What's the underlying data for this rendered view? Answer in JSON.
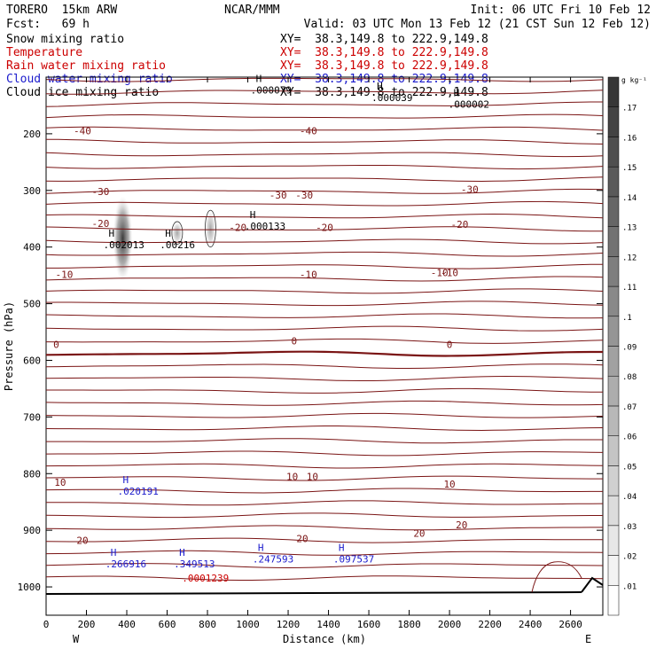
{
  "header": {
    "model": "TORERO  15km ARW",
    "org": "NCAR/MMM",
    "init": "Init: 06 UTC Fri 10 Feb 12",
    "fcst": "Fcst:   69 h",
    "valid": "Valid: 03 UTC Mon 13 Feb 12 (21 CST Sun 12 Feb 12)"
  },
  "fields": [
    {
      "name": "Snow mixing ratio",
      "xy": "XY=  38.3,149.8 to 222.9,149.8",
      "color": "#000000"
    },
    {
      "name": "Temperature",
      "xy": "XY=  38.3,149.8 to 222.9,149.8",
      "color": "#cc0000"
    },
    {
      "name": "Rain water mixing ratio",
      "xy": "XY=  38.3,149.8 to 222.9,149.8",
      "color": "#cc0000"
    },
    {
      "name": "Cloud water mixing ratio",
      "xy": "XY=  38.3,149.8 to 222.9,149.8",
      "color": "#1a1acc"
    },
    {
      "name": "Cloud ice mixing ratio",
      "xy": "XY=  38.3,149.8 to 222.9,149.8",
      "color": "#000000"
    }
  ],
  "chart_data": {
    "type": "contour",
    "xlabel": "Distance (km)",
    "ylabel": "Pressure (hPa)",
    "xlim": [
      0,
      2760
    ],
    "ylim": [
      1050,
      100
    ],
    "x_ticks": [
      0,
      200,
      400,
      600,
      800,
      1000,
      1200,
      1400,
      1600,
      1800,
      2000,
      2200,
      2400,
      2600
    ],
    "y_ticks": [
      200,
      300,
      400,
      500,
      600,
      700,
      800,
      900,
      1000
    ],
    "x_end_labels": {
      "left": "W",
      "right": "E"
    },
    "colorbar": {
      "unit": "g kg⁻¹",
      "levels": [
        0.01,
        0.02,
        0.03,
        0.04,
        0.05,
        0.06,
        0.07,
        0.08,
        0.09,
        0.1,
        0.11,
        0.12,
        0.13,
        0.14,
        0.15,
        0.16,
        0.17
      ],
      "labels": [
        ".01",
        ".02",
        ".03",
        ".04",
        ".05",
        ".06",
        ".07",
        ".08",
        ".09",
        ".1",
        ".11",
        ".12",
        ".13",
        ".14",
        ".15",
        ".16",
        ".17"
      ]
    },
    "temperature_contours": [
      {
        "value": -40,
        "label": "-40",
        "label_at": [
          [
            180,
            195
          ],
          [
            1300,
            195
          ]
        ]
      },
      {
        "value": -30,
        "label": "-30",
        "label_at": [
          [
            270,
            302
          ],
          [
            1150,
            308
          ],
          [
            1280,
            308
          ],
          [
            2100,
            298
          ]
        ]
      },
      {
        "value": -20,
        "label": "-20",
        "label_at": [
          [
            270,
            358
          ],
          [
            950,
            365
          ],
          [
            1380,
            365
          ],
          [
            2050,
            360
          ]
        ]
      },
      {
        "value": -10,
        "label": "-10",
        "label_at": [
          [
            90,
            448
          ],
          [
            1300,
            448
          ],
          [
            1950,
            445
          ],
          [
            2000,
            445
          ]
        ]
      },
      {
        "value": 0,
        "label": "0",
        "label_at": [
          [
            50,
            572
          ],
          [
            1230,
            566
          ],
          [
            2000,
            572
          ]
        ]
      },
      {
        "value": 10,
        "label": "10",
        "label_at": [
          [
            70,
            815
          ],
          [
            1220,
            805
          ],
          [
            1320,
            805
          ],
          [
            2000,
            818
          ]
        ]
      },
      {
        "value": 20,
        "label": "20",
        "label_at": [
          [
            180,
            918
          ],
          [
            1270,
            915
          ],
          [
            1850,
            905
          ],
          [
            2060,
            890
          ]
        ]
      }
    ],
    "maxima_labels": [
      {
        "text": "H",
        "sub": ".000079",
        "color": "#000000",
        "x": 1040,
        "p": 112
      },
      {
        "text": "H",
        "sub": ".000039",
        "color": "#000000",
        "x": 1640,
        "p": 125
      },
      {
        "text": "H",
        "sub": ".000002",
        "color": "#000000",
        "x": 2020,
        "p": 137
      },
      {
        "text": "H",
        "sub": ".000133",
        "color": "#000000",
        "x": 1010,
        "p": 352
      },
      {
        "text": "H",
        "sub": ".002013",
        "color": "#000000",
        "x": 310,
        "p": 385
      },
      {
        "text": "H",
        "sub": ".00216",
        "color": "#000000",
        "x": 590,
        "p": 385
      },
      {
        "text": "H",
        "sub": ".020191",
        "color": "#1a1acc",
        "x": 380,
        "p": 820
      },
      {
        "text": "H",
        "sub": ".266916",
        "color": "#1a1acc",
        "x": 320,
        "p": 948
      },
      {
        "text": "H",
        "sub": ".349513",
        "color": "#1a1acc",
        "x": 660,
        "p": 948
      },
      {
        "text": "H",
        "sub": ".247593",
        "color": "#1a1acc",
        "x": 1050,
        "p": 940
      },
      {
        "text": "H",
        "sub": ".097537",
        "color": "#1a1acc",
        "x": 1450,
        "p": 940
      },
      {
        "text": "",
        "sub": ".0001239",
        "color": "#cc0000",
        "x": 700,
        "p": 973
      }
    ],
    "frozen_features": [
      {
        "type": "plume",
        "x_center": 380,
        "p_top": 310,
        "p_bottom": 460,
        "max": 0.17
      },
      {
        "type": "plume",
        "x_center": 650,
        "p_top": 355,
        "p_bottom": 395,
        "max": 0.02
      },
      {
        "type": "plume",
        "x_center": 815,
        "p_top": 335,
        "p_bottom": 400,
        "max": 0.05
      }
    ]
  }
}
